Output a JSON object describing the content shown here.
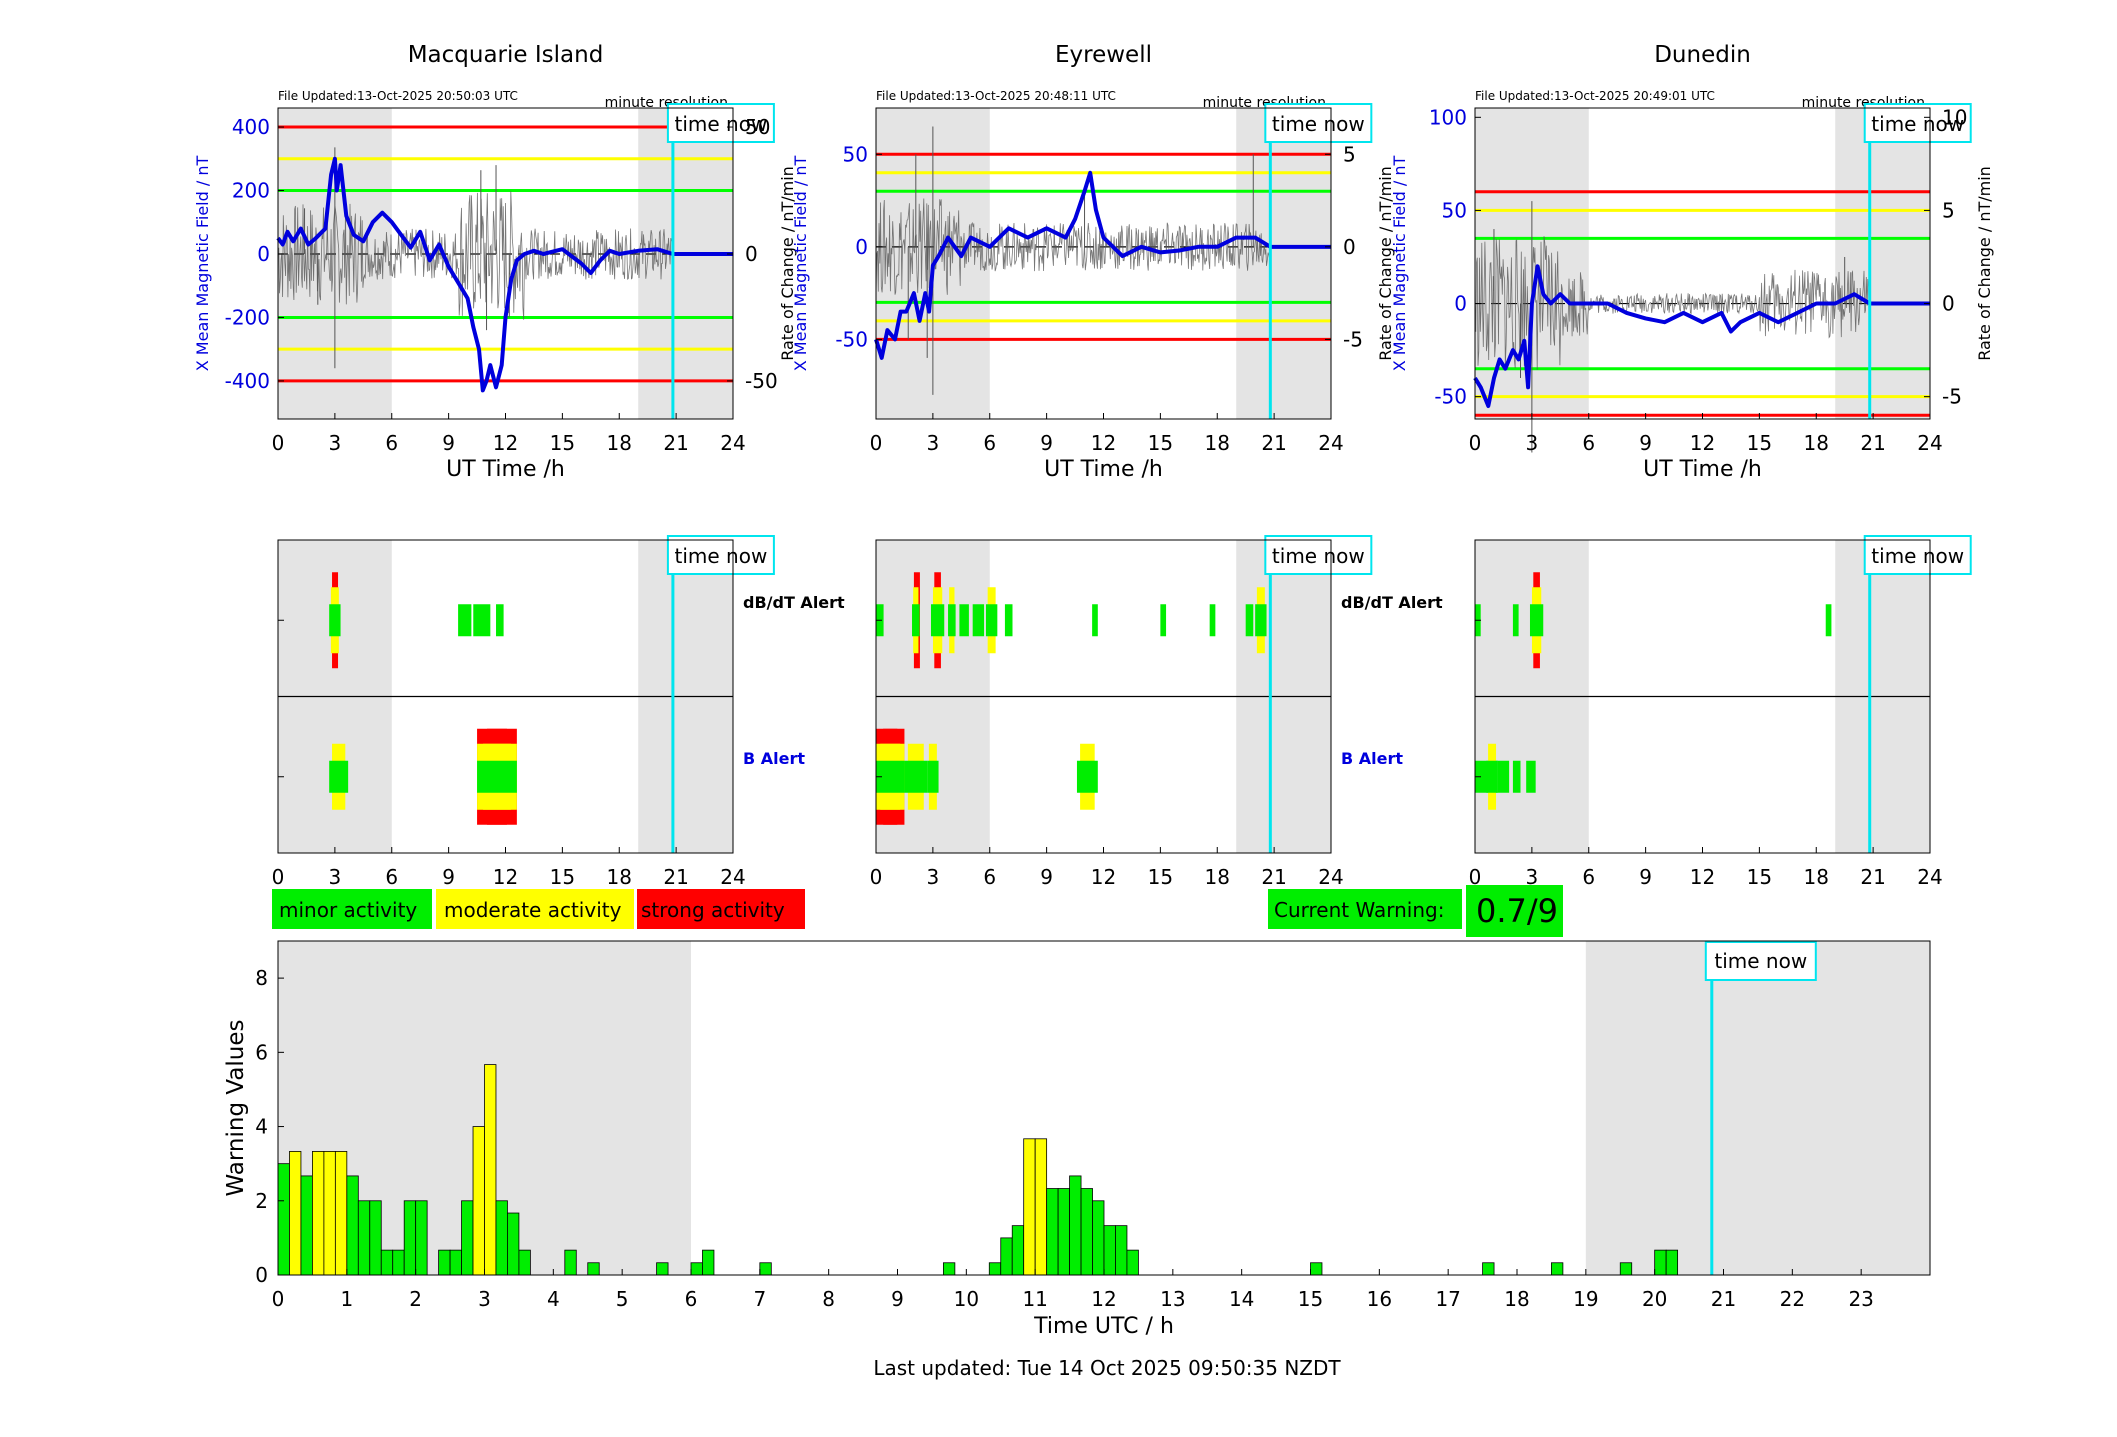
{
  "colors": {
    "night_shade": "#e4e4e4",
    "time_now_line": "#00e5ee",
    "magnetic_line": "#0000dd",
    "rate_line": "#555555",
    "threshold_strong": "#ff0000",
    "threshold_moderate": "#ffff00",
    "threshold_minor": "#00ff00",
    "minor": "#00ee00",
    "moderate": "#ffff00",
    "strong": "#ff0000",
    "bar_outline": "#000000"
  },
  "stations": [
    {
      "name": "Macquarie Island",
      "file_updated": "File Updated:13-Oct-2025 20:50:03 UTC",
      "resolution": "minute resolution",
      "time_now_label": "time now",
      "time_now": 20.83,
      "night": [
        [
          0,
          6
        ],
        [
          19,
          24
        ]
      ],
      "left_ylabel": "X Mean Magnetic Field / nT",
      "right_ylabel": "Rate of Change / nT/min",
      "xlabel": "UT Time /h",
      "xticks": [
        "0",
        "3",
        "6",
        "9",
        "12",
        "15",
        "18",
        "21",
        "24"
      ],
      "left_ylim": [
        -520,
        460
      ],
      "left_yticks": [
        "400",
        "200",
        "0",
        "-200",
        "-400"
      ],
      "left_ytick_values": [
        400,
        200,
        0,
        -200,
        -400
      ],
      "right_ylim": [
        -65,
        57.5
      ],
      "right_yticks": [
        "50",
        "0",
        "-50"
      ],
      "right_ytick_values": [
        50,
        0,
        -50
      ],
      "thresholds": {
        "strong": 400,
        "moderate": 300,
        "minor": 200
      },
      "field_x": [
        0,
        0.25,
        0.5,
        0.8,
        1.2,
        1.6,
        2.0,
        2.5,
        2.8,
        3.0,
        3.1,
        3.3,
        3.6,
        4.0,
        4.5,
        5.0,
        5.5,
        6.0,
        6.5,
        7.0,
        7.5,
        8.0,
        8.5,
        9.0,
        9.5,
        10.0,
        10.3,
        10.6,
        10.8,
        11.0,
        11.2,
        11.5,
        11.8,
        12.0,
        12.3,
        12.6,
        13.0,
        13.5,
        14.0,
        15.0,
        16.0,
        16.5,
        17.0,
        17.5,
        18.0,
        19.0,
        20.0,
        20.83
      ],
      "field_y": [
        50,
        30,
        70,
        40,
        80,
        30,
        50,
        80,
        250,
        300,
        200,
        280,
        120,
        60,
        40,
        100,
        130,
        100,
        60,
        20,
        70,
        -20,
        30,
        -40,
        -90,
        -140,
        -230,
        -300,
        -430,
        -400,
        -350,
        -420,
        -350,
        -200,
        -80,
        -20,
        0,
        10,
        0,
        15,
        -30,
        -60,
        -20,
        10,
        0,
        10,
        15,
        0
      ],
      "field_forecast": [
        [
          20.83,
          0
        ],
        [
          24,
          0
        ]
      ],
      "rate_spikes": [
        [
          3.0,
          42
        ],
        [
          3.0,
          -45
        ],
        [
          10.7,
          33
        ],
        [
          11.0,
          -30
        ],
        [
          11.5,
          35
        ],
        [
          12.2,
          -25
        ],
        [
          2.1,
          -20
        ],
        [
          1.4,
          18
        ]
      ]
    },
    {
      "name": "Eyrewell",
      "file_updated": "File Updated:13-Oct-2025 20:48:11 UTC",
      "resolution": "minute resolution",
      "time_now_label": "time now",
      "time_now": 20.8,
      "night": [
        [
          0,
          6
        ],
        [
          19,
          24
        ]
      ],
      "left_ylabel": "X Mean Magnetic Field / nT",
      "right_ylabel": "Rate of Change / nT/min",
      "xlabel": "UT Time /h",
      "xticks": [
        "0",
        "3",
        "6",
        "9",
        "12",
        "15",
        "18",
        "21",
        "24"
      ],
      "left_ylim": [
        -93,
        75
      ],
      "left_yticks": [
        "50",
        "0",
        "-50"
      ],
      "left_ytick_values": [
        50,
        0,
        -50
      ],
      "right_ylim": [
        -9.3,
        7.5
      ],
      "right_yticks": [
        "5",
        "0",
        "-5"
      ],
      "right_ytick_values": [
        5,
        0,
        -5
      ],
      "thresholds": {
        "strong": 50,
        "moderate": 40,
        "minor": 30
      },
      "field_x": [
        0,
        0.3,
        0.6,
        1.0,
        1.3,
        1.6,
        2.0,
        2.3,
        2.6,
        2.8,
        3.0,
        3.3,
        3.8,
        4.5,
        5.0,
        6.0,
        7.0,
        8.0,
        9.0,
        10.0,
        10.5,
        11.0,
        11.3,
        11.6,
        12.0,
        12.5,
        13.0,
        14.0,
        15.0,
        16.0,
        17.0,
        18.0,
        19.0,
        20.0,
        20.8
      ],
      "field_y": [
        -50,
        -60,
        -45,
        -50,
        -35,
        -35,
        -25,
        -40,
        -25,
        -35,
        -10,
        -5,
        5,
        -5,
        5,
        0,
        10,
        5,
        10,
        5,
        15,
        30,
        40,
        20,
        5,
        0,
        -5,
        0,
        -3,
        -2,
        0,
        0,
        5,
        5,
        0
      ],
      "field_forecast": [
        [
          20.8,
          0
        ],
        [
          24,
          0
        ]
      ],
      "rate_spikes": [
        [
          3.0,
          6.5
        ],
        [
          3.0,
          -8
        ],
        [
          2.1,
          5
        ],
        [
          2.7,
          -6
        ],
        [
          19.9,
          5
        ],
        [
          11.0,
          3
        ],
        [
          1.7,
          -5
        ]
      ]
    },
    {
      "name": "Dunedin",
      "file_updated": "File Updated:13-Oct-2025 20:49:01 UTC",
      "resolution": "minute resolution",
      "time_now_label": "time now",
      "time_now": 20.82,
      "night": [
        [
          0,
          6
        ],
        [
          19,
          24
        ]
      ],
      "left_ylabel": "X Mean Magnetic Field / nT",
      "right_ylabel": "Rate of Change / nT/min",
      "xlabel": "UT Time /h",
      "xticks": [
        "0",
        "3",
        "6",
        "9",
        "12",
        "15",
        "18",
        "21",
        "24"
      ],
      "left_ylim": [
        -62,
        105
      ],
      "left_yticks": [
        "100",
        "50",
        "0",
        "-50"
      ],
      "left_ytick_values": [
        100,
        50,
        0,
        -50
      ],
      "right_ylim": [
        -6.2,
        10.5
      ],
      "right_yticks": [
        "10",
        "5",
        "0",
        "-5"
      ],
      "right_ytick_values": [
        10,
        5,
        0,
        -5
      ],
      "thresholds": {
        "strong": 60,
        "moderate": 50,
        "minor": 35
      },
      "field_x": [
        0,
        0.3,
        0.7,
        1.0,
        1.3,
        1.6,
        2.0,
        2.3,
        2.6,
        2.8,
        3.0,
        3.3,
        3.6,
        4.0,
        4.5,
        5.0,
        6.0,
        7.0,
        8.0,
        9.0,
        10.0,
        11.0,
        12.0,
        13.0,
        13.5,
        14.0,
        15.0,
        16.0,
        17.0,
        18.0,
        19.0,
        20.0,
        20.82
      ],
      "field_y": [
        -40,
        -45,
        -55,
        -40,
        -30,
        -35,
        -25,
        -30,
        -20,
        -45,
        0,
        20,
        5,
        0,
        5,
        0,
        0,
        0,
        -5,
        -8,
        -10,
        -5,
        -10,
        -5,
        -15,
        -10,
        -5,
        -10,
        -5,
        0,
        0,
        5,
        0
      ],
      "field_forecast": [
        [
          20.82,
          0
        ],
        [
          24,
          0
        ]
      ],
      "rate_spikes": [
        [
          3.0,
          5.5
        ],
        [
          3.0,
          -8
        ],
        [
          1.0,
          4
        ],
        [
          2.4,
          -4
        ],
        [
          19.5,
          2.5
        ]
      ]
    }
  ],
  "alerts": {
    "time_now_label": "time now",
    "dbdt_label": "dB/dT Alert",
    "b_label": "B Alert",
    "xticks": [
      "0",
      "3",
      "6",
      "9",
      "12",
      "15",
      "18",
      "21",
      "24"
    ],
    "stations": [
      {
        "dbdt": [
          [
            2.7,
            3.3,
            3
          ],
          [
            9.5,
            10.2,
            1
          ],
          [
            10.3,
            11.2,
            1
          ],
          [
            11.5,
            11.9,
            1
          ]
        ],
        "b": [
          [
            2.7,
            3.7,
            2
          ],
          [
            10.5,
            12.6,
            3
          ]
        ]
      },
      {
        "dbdt": [
          [
            0,
            0.4,
            1
          ],
          [
            1.9,
            2.3,
            3
          ],
          [
            2.9,
            3.6,
            3
          ],
          [
            3.8,
            4.2,
            2
          ],
          [
            4.4,
            4.9,
            1
          ],
          [
            5.1,
            5.7,
            1
          ],
          [
            5.8,
            6.4,
            2
          ],
          [
            6.8,
            7.2,
            1
          ],
          [
            11.4,
            11.7,
            1
          ],
          [
            15.0,
            15.3,
            1
          ],
          [
            17.6,
            17.9,
            1
          ],
          [
            19.5,
            19.9,
            1
          ],
          [
            20.0,
            20.6,
            2
          ]
        ],
        "b": [
          [
            0,
            1.5,
            3
          ],
          [
            1.5,
            2.7,
            2
          ],
          [
            2.7,
            3.3,
            2
          ],
          [
            10.6,
            11.7,
            2
          ]
        ]
      },
      {
        "dbdt": [
          [
            0,
            0.3,
            1
          ],
          [
            2.0,
            2.3,
            1
          ],
          [
            2.9,
            3.6,
            3
          ],
          [
            18.5,
            18.8,
            1
          ]
        ],
        "b": [
          [
            0,
            1.2,
            1
          ],
          [
            0.6,
            1.2,
            2
          ],
          [
            1.2,
            1.8,
            1
          ],
          [
            2.0,
            2.4,
            1
          ],
          [
            2.7,
            3.2,
            1
          ]
        ]
      }
    ]
  },
  "legend": {
    "minor": "minor activity",
    "moderate": "moderate activity",
    "strong": "strong activity"
  },
  "current_warning": {
    "label": "Current Warning:",
    "value": "0.7/9"
  },
  "chart_data": {
    "type": "bar",
    "ylabel": "Warning Values",
    "xlabel": "Time UTC / h",
    "xlim": [
      0,
      24
    ],
    "ylim": [
      0,
      9
    ],
    "xticks": [
      "0",
      "1",
      "2",
      "3",
      "4",
      "5",
      "6",
      "7",
      "8",
      "9",
      "10",
      "11",
      "12",
      "13",
      "14",
      "15",
      "16",
      "17",
      "18",
      "19",
      "20",
      "21",
      "22",
      "23"
    ],
    "yticks": [
      "0",
      "2",
      "4",
      "6",
      "8"
    ],
    "ytick_values": [
      0,
      2,
      4,
      6,
      8
    ],
    "time_now": 20.83,
    "time_now_label": "time now",
    "night": [
      [
        0,
        6
      ],
      [
        19,
        24
      ]
    ],
    "bin_width_h": 0.1667,
    "bars": [
      {
        "t": 0.0,
        "v": 3.0,
        "level": "minor"
      },
      {
        "t": 0.1667,
        "v": 3.33,
        "level": "moderate"
      },
      {
        "t": 0.3333,
        "v": 2.67,
        "level": "minor"
      },
      {
        "t": 0.5,
        "v": 3.33,
        "level": "moderate"
      },
      {
        "t": 0.6667,
        "v": 3.33,
        "level": "moderate"
      },
      {
        "t": 0.8333,
        "v": 3.33,
        "level": "moderate"
      },
      {
        "t": 1.0,
        "v": 2.67,
        "level": "minor"
      },
      {
        "t": 1.1667,
        "v": 2.0,
        "level": "minor"
      },
      {
        "t": 1.3333,
        "v": 2.0,
        "level": "minor"
      },
      {
        "t": 1.5,
        "v": 0.67,
        "level": "minor"
      },
      {
        "t": 1.6667,
        "v": 0.67,
        "level": "minor"
      },
      {
        "t": 1.8333,
        "v": 2.0,
        "level": "minor"
      },
      {
        "t": 2.0,
        "v": 2.0,
        "level": "minor"
      },
      {
        "t": 2.3333,
        "v": 0.67,
        "level": "minor"
      },
      {
        "t": 2.5,
        "v": 0.67,
        "level": "minor"
      },
      {
        "t": 2.6667,
        "v": 2.0,
        "level": "minor"
      },
      {
        "t": 2.8333,
        "v": 4.0,
        "level": "moderate"
      },
      {
        "t": 3.0,
        "v": 5.67,
        "level": "moderate"
      },
      {
        "t": 3.1667,
        "v": 2.0,
        "level": "minor"
      },
      {
        "t": 3.3333,
        "v": 1.67,
        "level": "minor"
      },
      {
        "t": 3.5,
        "v": 0.67,
        "level": "minor"
      },
      {
        "t": 4.1667,
        "v": 0.67,
        "level": "minor"
      },
      {
        "t": 4.5,
        "v": 0.33,
        "level": "minor"
      },
      {
        "t": 5.5,
        "v": 0.33,
        "level": "minor"
      },
      {
        "t": 6.0,
        "v": 0.33,
        "level": "minor"
      },
      {
        "t": 6.1667,
        "v": 0.67,
        "level": "minor"
      },
      {
        "t": 7.0,
        "v": 0.33,
        "level": "minor"
      },
      {
        "t": 9.6667,
        "v": 0.33,
        "level": "minor"
      },
      {
        "t": 10.3333,
        "v": 0.33,
        "level": "minor"
      },
      {
        "t": 10.5,
        "v": 1.0,
        "level": "minor"
      },
      {
        "t": 10.6667,
        "v": 1.33,
        "level": "minor"
      },
      {
        "t": 10.8333,
        "v": 3.67,
        "level": "moderate"
      },
      {
        "t": 11.0,
        "v": 3.67,
        "level": "moderate"
      },
      {
        "t": 11.1667,
        "v": 2.33,
        "level": "minor"
      },
      {
        "t": 11.3333,
        "v": 2.33,
        "level": "minor"
      },
      {
        "t": 11.5,
        "v": 2.67,
        "level": "minor"
      },
      {
        "t": 11.6667,
        "v": 2.33,
        "level": "minor"
      },
      {
        "t": 11.8333,
        "v": 2.0,
        "level": "minor"
      },
      {
        "t": 12.0,
        "v": 1.33,
        "level": "minor"
      },
      {
        "t": 12.1667,
        "v": 1.33,
        "level": "minor"
      },
      {
        "t": 12.3333,
        "v": 0.67,
        "level": "minor"
      },
      {
        "t": 15.0,
        "v": 0.33,
        "level": "minor"
      },
      {
        "t": 17.5,
        "v": 0.33,
        "level": "minor"
      },
      {
        "t": 18.5,
        "v": 0.33,
        "level": "minor"
      },
      {
        "t": 19.5,
        "v": 0.33,
        "level": "minor"
      },
      {
        "t": 20.0,
        "v": 0.67,
        "level": "minor"
      },
      {
        "t": 20.1667,
        "v": 0.67,
        "level": "minor"
      }
    ]
  },
  "footer": {
    "last_updated": "Last updated: Tue 14 Oct 2025 09:50:35 NZDT"
  }
}
